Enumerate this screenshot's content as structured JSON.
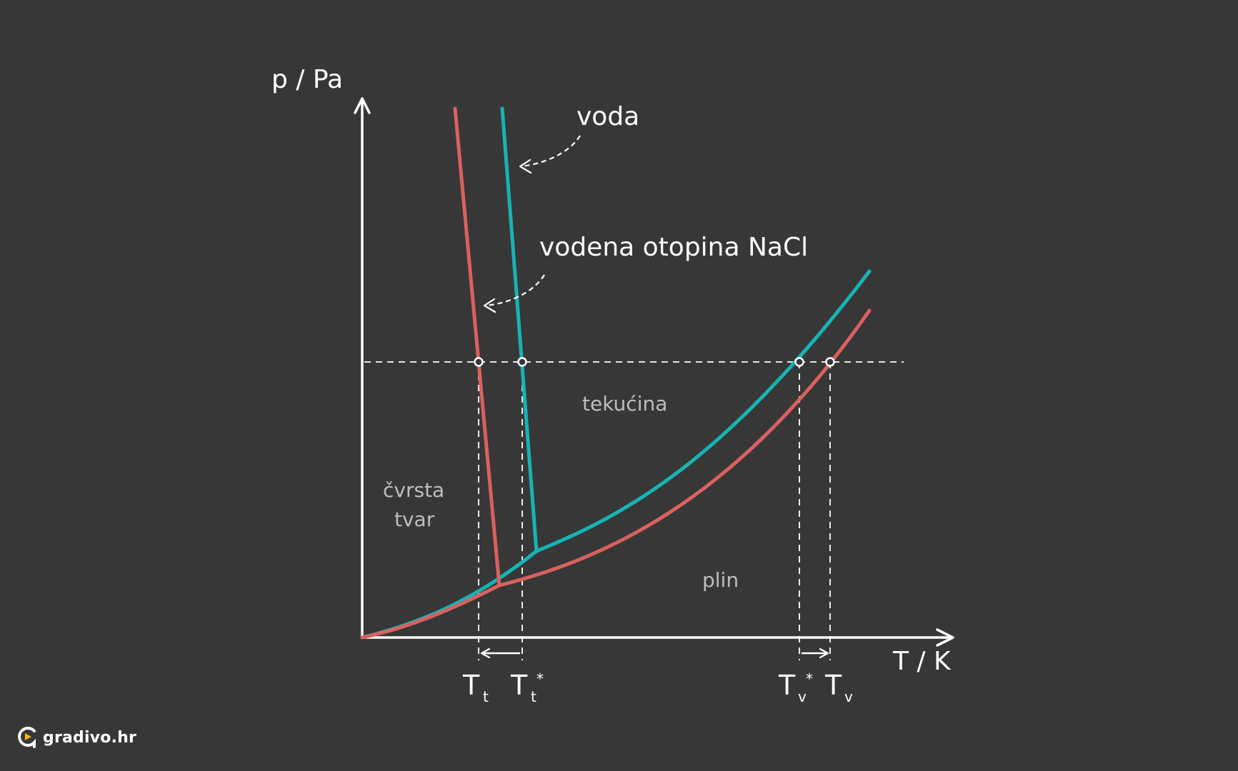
{
  "axes": {
    "y_label": "p / Pa",
    "x_label": "T / K"
  },
  "labels": {
    "water": "voda",
    "solution": "vodena otopina NaCl"
  },
  "regions": {
    "solid_line1": "čvrsta",
    "solid_line2": "tvar",
    "liquid": "tekućina",
    "gas": "plin"
  },
  "ticks": {
    "t_solution_freeze": {
      "main": "T",
      "sub": "t",
      "sup": ""
    },
    "t_water_freeze": {
      "main": "T",
      "sub": "t",
      "sup": "*"
    },
    "t_water_boil": {
      "main": "T",
      "sub": "v",
      "sup": "*"
    },
    "t_solution_boil": {
      "main": "T",
      "sub": "v",
      "sup": ""
    }
  },
  "colors": {
    "background": "#373737",
    "water": "#17b3b3",
    "solution": "#d9605f",
    "axis": "#ffffff",
    "region_text": "#bdbdbd"
  },
  "logo": {
    "text": "gradivo.hr",
    "icon": "gradivo-logo-icon"
  }
}
